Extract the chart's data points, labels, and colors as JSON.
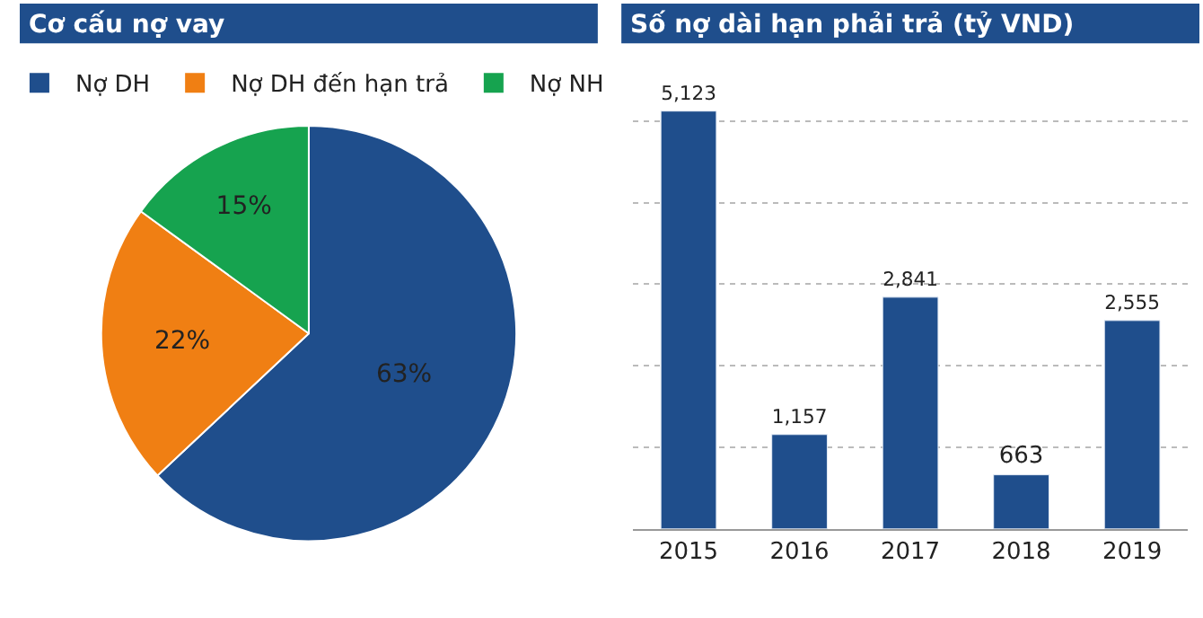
{
  "chart_data": [
    {
      "type": "pie",
      "title": "Cơ cấu nợ vay",
      "categories": [
        "Nợ DH",
        "Nợ DH đến hạn trả",
        "Nợ NH"
      ],
      "values": [
        63,
        22,
        15
      ],
      "colors": [
        "#1f4e8c",
        "#f07f13",
        "#16a34f"
      ],
      "value_labels": [
        "63%",
        "22%",
        "15%"
      ],
      "legend": "top"
    },
    {
      "type": "bar",
      "title": "Số nợ dài hạn phải trả (tỷ VND)",
      "categories": [
        "2015",
        "2016",
        "2017",
        "2018",
        "2019"
      ],
      "values": [
        5123,
        1157,
        2841,
        663,
        2555
      ],
      "color": "#1f4e8c",
      "value_labels": [
        "5,123",
        "1,157",
        "2,841",
        "663",
        "2,555"
      ],
      "grid": "y",
      "tick_labels": "x"
    }
  ]
}
